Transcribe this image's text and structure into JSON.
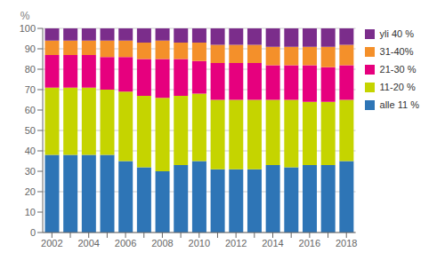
{
  "chart_data": {
    "type": "bar",
    "stacked": true,
    "ylabel": "%",
    "categories": [
      2002,
      null,
      2004,
      null,
      2006,
      null,
      2008,
      null,
      2010,
      null,
      2012,
      null,
      2014,
      null,
      2016,
      null,
      2018
    ],
    "series": [
      {
        "name": "alle 11 %",
        "color": "#2E75B6",
        "values": [
          38,
          38,
          38,
          38,
          35,
          32,
          30,
          33,
          35,
          31,
          31,
          31,
          33,
          32,
          33,
          33,
          35
        ]
      },
      {
        "name": "11-20 %",
        "color": "#C5D400",
        "values": [
          33,
          33,
          33,
          32,
          34,
          35,
          36,
          34,
          33,
          34,
          34,
          34,
          32,
          33,
          31,
          31,
          30
        ]
      },
      {
        "name": "21-30 %",
        "color": "#E6007E",
        "values": [
          16,
          16,
          16,
          16,
          17,
          18,
          19,
          18,
          16,
          18,
          18,
          18,
          17,
          17,
          18,
          17,
          17
        ]
      },
      {
        "name": "31-40%",
        "color": "#F4902A",
        "values": [
          7,
          7,
          7,
          8,
          8,
          8,
          9,
          8,
          9,
          9,
          9,
          9,
          9,
          9,
          9,
          10,
          10
        ]
      },
      {
        "name": "yli 40 %",
        "color": "#7B2D8B",
        "values": [
          6,
          6,
          6,
          6,
          6,
          7,
          6,
          7,
          7,
          8,
          8,
          8,
          9,
          9,
          9,
          9,
          8
        ]
      }
    ],
    "ylim": [
      0,
      100
    ],
    "yticks": [
      0,
      10,
      20,
      30,
      40,
      50,
      60,
      70,
      80,
      90,
      100
    ],
    "grid": true,
    "legend": "right"
  }
}
